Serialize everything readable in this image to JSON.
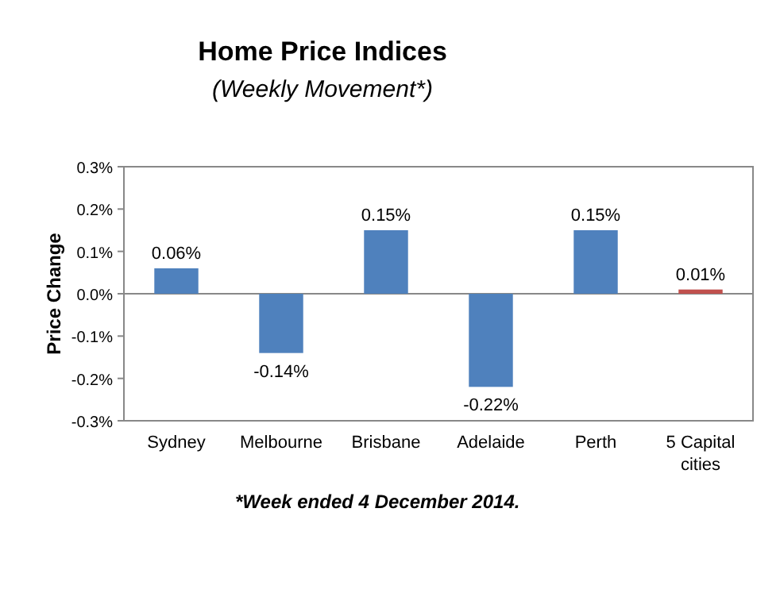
{
  "chart_data": {
    "type": "bar",
    "title": "Home Price Indices",
    "subtitle": "(Weekly Movement*)",
    "ylabel": "Price Change",
    "categories": [
      "Sydney",
      "Melbourne",
      "Brisbane",
      "Adelaide",
      "Perth",
      "5 Capital cities"
    ],
    "values": [
      0.06,
      -0.14,
      0.15,
      -0.22,
      0.15,
      0.01
    ],
    "colors": [
      "#4f81bd",
      "#4f81bd",
      "#4f81bd",
      "#4f81bd",
      "#4f81bd",
      "#c0504d"
    ],
    "value_labels": [
      "0.06%",
      "-0.14%",
      "0.15%",
      "-0.22%",
      "0.15%",
      "0.01%"
    ],
    "ylim": [
      -0.3,
      0.3
    ],
    "yticks": [
      {
        "value": -0.3,
        "label": "-0.3%"
      },
      {
        "value": -0.2,
        "label": "-0.2%"
      },
      {
        "value": -0.1,
        "label": "-0.1%"
      },
      {
        "value": 0,
        "label": "0.0%"
      },
      {
        "value": 0.1,
        "label": "0.1%"
      },
      {
        "value": 0.2,
        "label": "0.2%"
      },
      {
        "value": 0.3,
        "label": "0.3%"
      }
    ],
    "annotations": [
      "*Week ended 4 December 2014."
    ]
  }
}
